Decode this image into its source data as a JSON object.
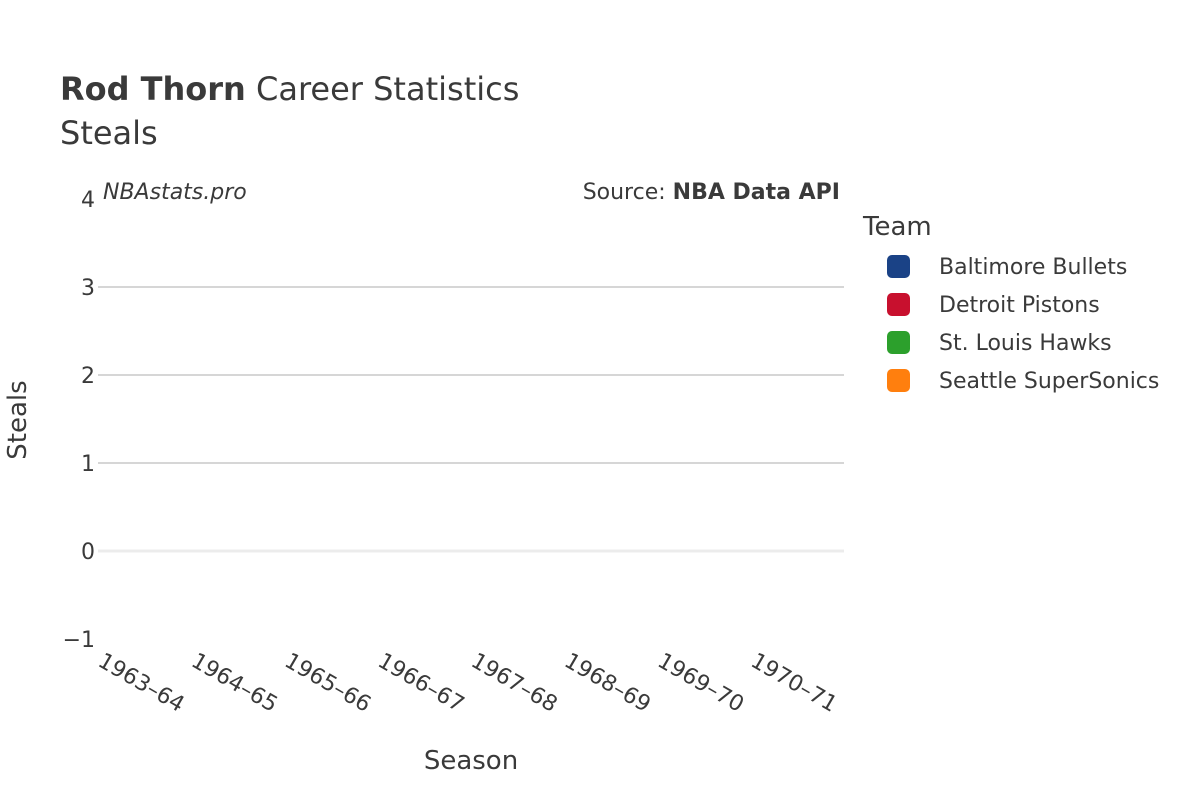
{
  "chart_data": {
    "type": "line",
    "title": {
      "bold": "Rod Thorn",
      "rest": " Career Statistics"
    },
    "subtitle": "Steals",
    "watermark": "NBAstats.pro",
    "source": {
      "prefix": "Source: ",
      "bold": "NBA Data API"
    },
    "xlabel": "Season",
    "ylabel": "Steals",
    "ylim": [
      -1,
      4
    ],
    "yticks": [
      -1,
      0,
      1,
      2,
      3,
      4
    ],
    "yticklabels": [
      "−1",
      "0",
      "1",
      "2",
      "3",
      "4"
    ],
    "categories": [
      "1963–64",
      "1964–65",
      "1965–66",
      "1966–67",
      "1967–68",
      "1968–69",
      "1969–70",
      "1970–71"
    ],
    "legend": {
      "title": "Team",
      "placement": "right",
      "items": [
        {
          "name": "Baltimore Bullets",
          "color": "#1a4286"
        },
        {
          "name": "Detroit Pistons",
          "color": "#c8102e"
        },
        {
          "name": "St. Louis Hawks",
          "color": "#2ca02c"
        },
        {
          "name": "Seattle SuperSonics",
          "color": "#ff7f0e"
        }
      ]
    },
    "series": []
  }
}
